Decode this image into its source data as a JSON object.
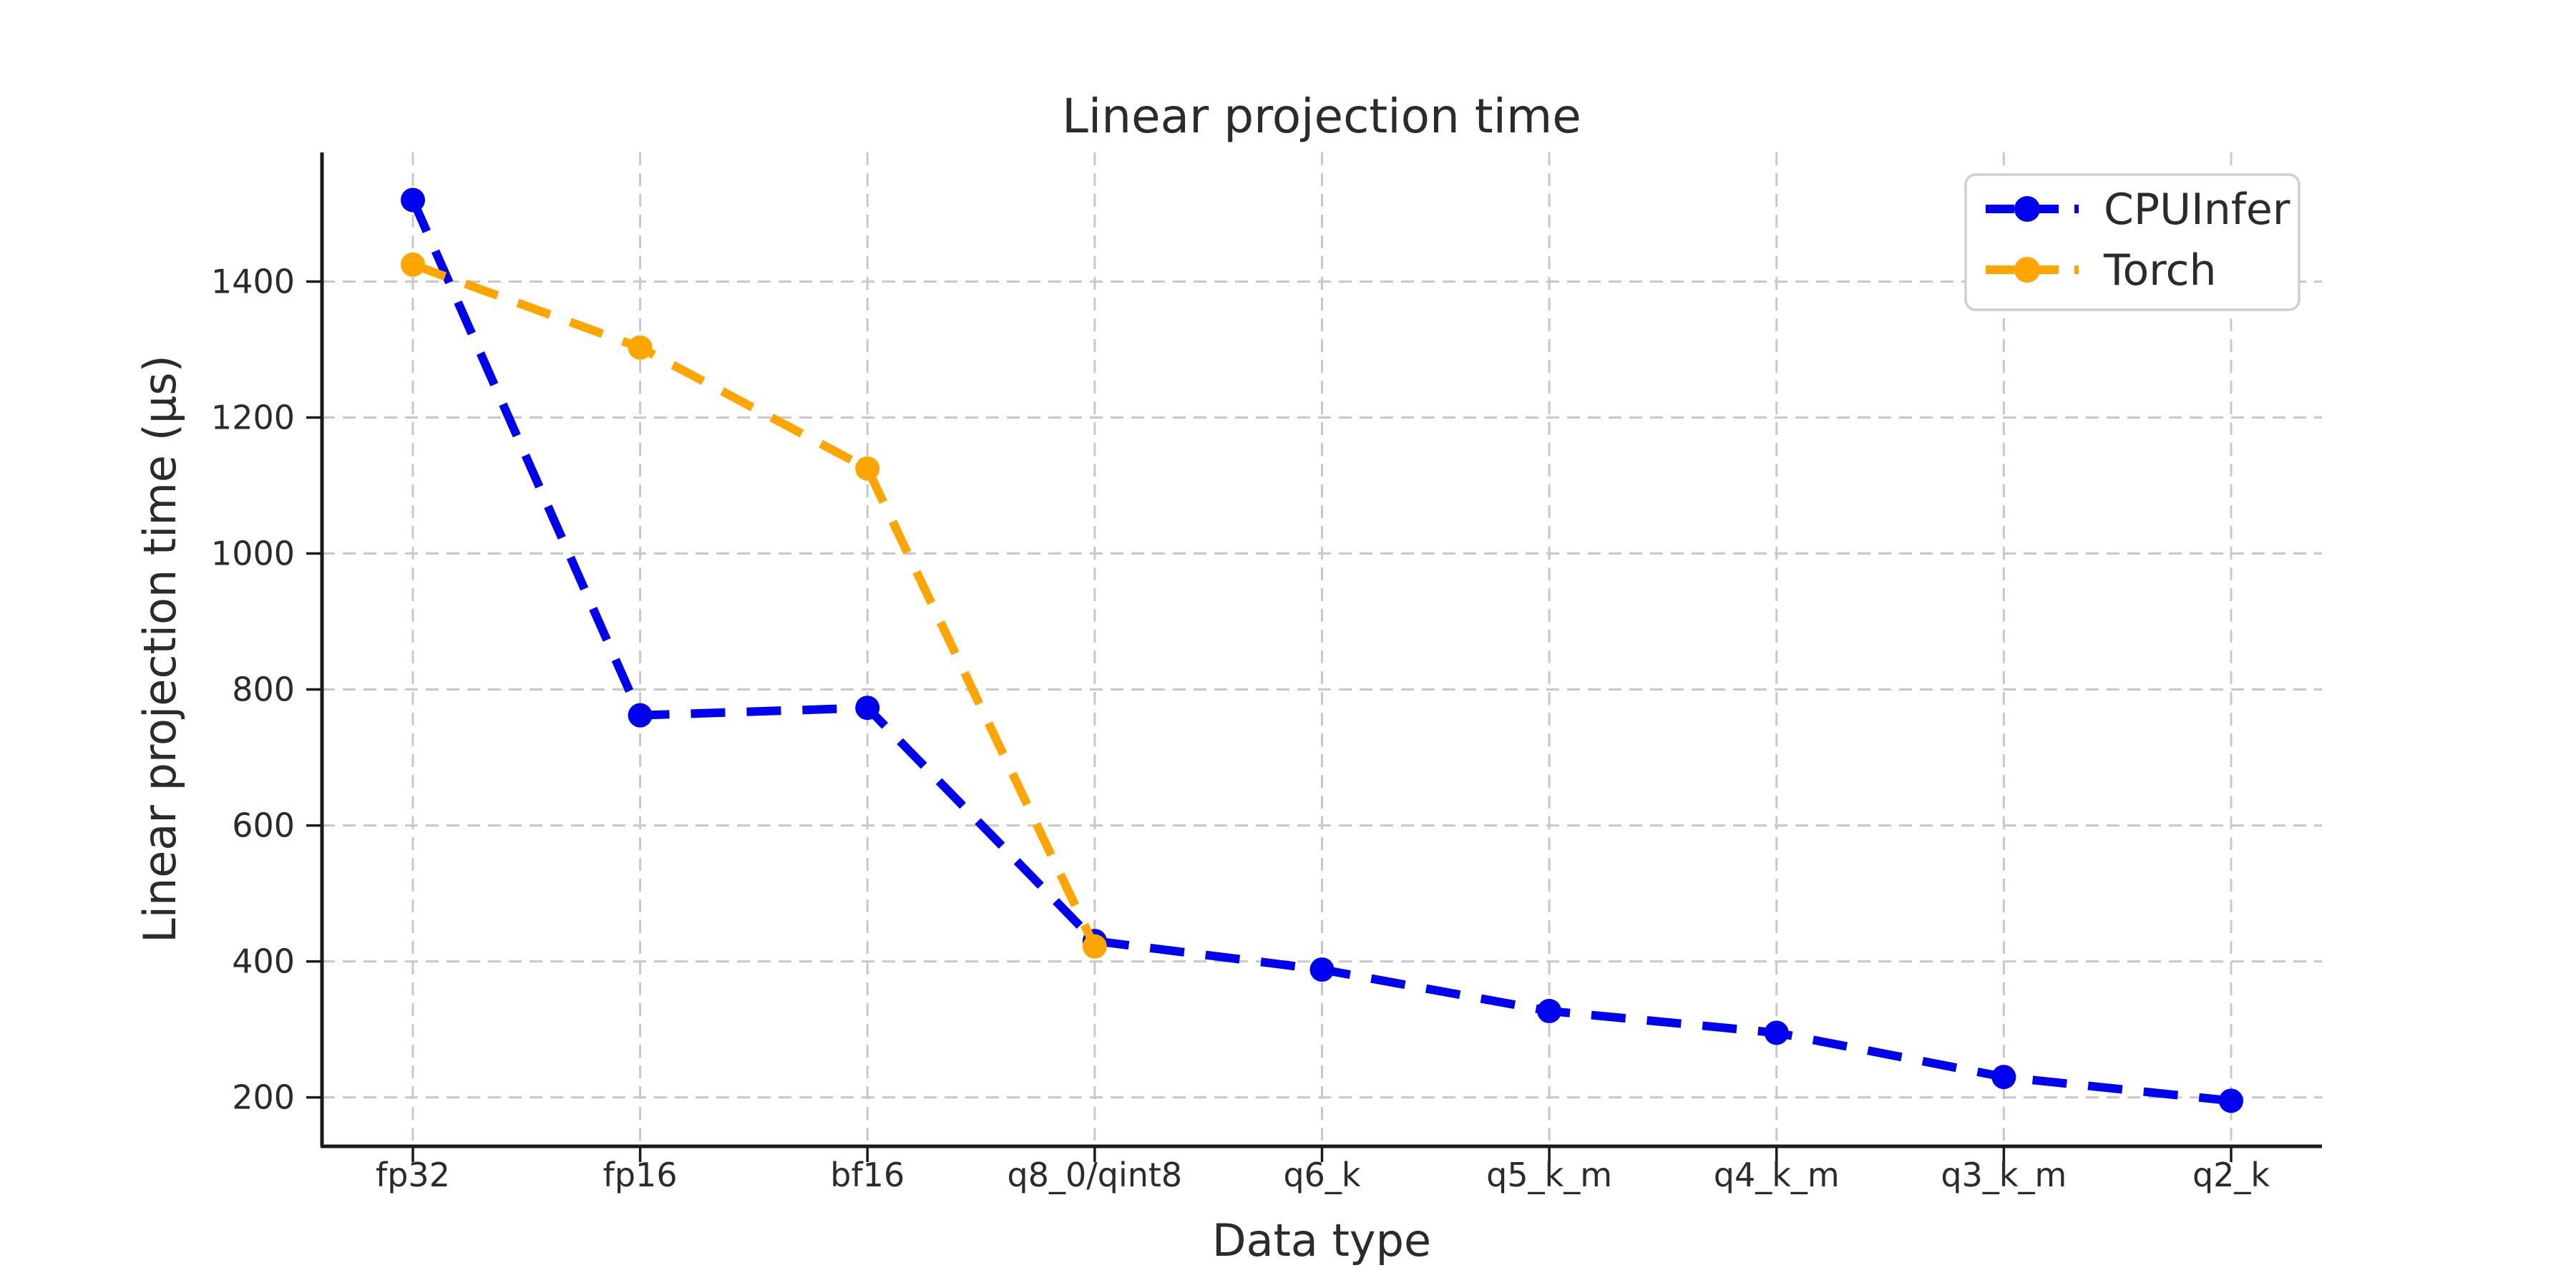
{
  "chart_data": {
    "type": "line",
    "title": "Linear projection time",
    "xlabel": "Data type",
    "ylabel": "Linear projection time (μs)",
    "categories": [
      "fp32",
      "fp16",
      "bf16",
      "q8_0/qint8",
      "q6_k",
      "q5_k_m",
      "q4_k_m",
      "q3_k_m",
      "q2_k"
    ],
    "series": [
      {
        "name": "CPUInfer",
        "color": "#0000f0",
        "marker": "circle",
        "line_style": "dashed",
        "values": [
          1520,
          762,
          773,
          430,
          388,
          327,
          295,
          230,
          195
        ]
      },
      {
        "name": "Torch",
        "color": "#ffa500",
        "marker": "circle",
        "line_style": "dashed",
        "values": [
          1425,
          1303,
          1125,
          422,
          null,
          null,
          null,
          null,
          null
        ]
      }
    ],
    "y_ticks": [
      200,
      400,
      600,
      800,
      1000,
      1200,
      1400
    ],
    "ylim": [
      128,
      1590
    ],
    "grid": true,
    "grid_style": "dashed",
    "legend_position": "upper right",
    "background": "#ffffff",
    "text_color": "#2b2b2b"
  }
}
